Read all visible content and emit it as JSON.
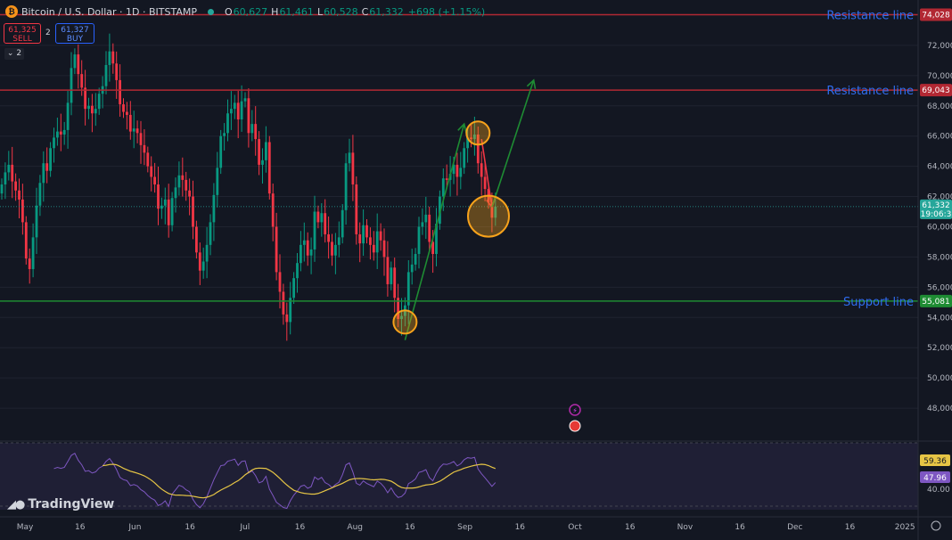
{
  "header": {
    "title": "Bitcoin / U.S. Dollar · 1D · BITSTAMP",
    "o_label": "O",
    "o_value": "60,627",
    "h_label": "H",
    "h_value": "61,461",
    "l_label": "L",
    "l_value": "60,528",
    "c_label": "C",
    "c_value": "61,332",
    "change": "+698 (+1.15%)"
  },
  "trade": {
    "sell_price": "61,325",
    "sell_label": "SELL",
    "spread": "2",
    "buy_price": "61,327",
    "buy_label": "BUY"
  },
  "indicator_toggle": "2",
  "branding": "TradingView",
  "colors": {
    "up": "#089981",
    "down": "#f23645",
    "resistance": "#b22833",
    "support": "#1e8c33",
    "accent": "#2962ff",
    "rsi": "#7e57c2",
    "rsi_ma": "#e6c545",
    "marker": "#f7a21b"
  },
  "chart_data": {
    "type": "candlestick",
    "symbol": "BTCUSD",
    "interval": "1D",
    "exchange": "BITSTAMP",
    "ylim": [
      46000,
      75000
    ],
    "y_ticks": [
      "48,000",
      "50,000",
      "52,000",
      "54,000",
      "56,000",
      "58,000",
      "60,000",
      "62,000",
      "64,000",
      "66,000",
      "68,000",
      "70,000",
      "72,000"
    ],
    "x_ticks": [
      "May",
      "16",
      "Jun",
      "16",
      "Jul",
      "16",
      "Aug",
      "16",
      "Sep",
      "16",
      "Oct",
      "16",
      "Nov",
      "16",
      "Dec",
      "16",
      "2025"
    ],
    "horizontal_lines": [
      {
        "label": "Resistance line",
        "price": 74028,
        "price_label": "74,028",
        "color": "#b22833"
      },
      {
        "label": "Resistance line",
        "price": 69043,
        "price_label": "69,043",
        "color": "#b22833"
      },
      {
        "label": "Support line",
        "price": 55081,
        "price_label": "55,081",
        "color": "#1e8c33"
      }
    ],
    "last_price": {
      "price": 61332,
      "label": "61,332",
      "countdown": "19:06:3"
    },
    "closes": [
      62800,
      63600,
      64100,
      63000,
      62400,
      61800,
      60300,
      57900,
      57200,
      59300,
      61400,
      62900,
      64200,
      63700,
      65200,
      65900,
      66300,
      66100,
      66400,
      68200,
      70500,
      71400,
      70100,
      69200,
      67800,
      68000,
      67500,
      67800,
      68800,
      69300,
      70700,
      71600,
      70800,
      69700,
      68100,
      67600,
      67400,
      66300,
      66500,
      66200,
      65400,
      64900,
      64000,
      63300,
      62800,
      61200,
      61400,
      61800,
      60100,
      61900,
      62600,
      63400,
      63100,
      62400,
      62000,
      60000,
      58300,
      57100,
      57700,
      58800,
      60300,
      62100,
      63900,
      66000,
      66200,
      67500,
      67800,
      68200,
      67100,
      68300,
      68500,
      66200,
      66800,
      65800,
      64100,
      64400,
      65600,
      62200,
      60000,
      57000,
      55700,
      54200,
      53700,
      55300,
      56600,
      57600,
      58800,
      59100,
      58100,
      58500,
      61000,
      60300,
      60900,
      59500,
      59000,
      58100,
      58800,
      59300,
      61100,
      64200,
      64900,
      62800,
      59500,
      58900,
      60100,
      59300,
      58800,
      58300,
      59700,
      59100,
      58000,
      56200,
      57300,
      55300,
      53900,
      54100,
      54800,
      57000,
      57500,
      58200,
      60000,
      60300,
      60800,
      59000,
      58200,
      60200,
      62000,
      63200,
      63100,
      63500,
      64100,
      63300,
      63900,
      65200,
      65900,
      65800,
      66100,
      64200,
      63300,
      62500,
      61600,
      60600,
      61332
    ]
  },
  "rsi": {
    "ylim": [
      0,
      100
    ],
    "ma_value": "59.36",
    "rsi_value": "47.96",
    "level_label": "40.00",
    "ma_period": 14,
    "rsi_period": 14
  },
  "annotations": {
    "circles": [
      {
        "date_index": 116,
        "price": 53700
      },
      {
        "date_index": 137,
        "price": 66200
      },
      {
        "date_index": 140,
        "price": 60700
      }
    ],
    "arrows": [
      {
        "color": "#1e8c33",
        "from": [
          116,
          52500
        ],
        "to": [
          133,
          66800
        ]
      },
      {
        "color": "#f23645",
        "from": [
          138,
          65800
        ],
        "to": [
          141,
          61300
        ]
      },
      {
        "color": "#1e8c33",
        "from": [
          141,
          61300
        ],
        "to": [
          153,
          69700
        ]
      }
    ]
  }
}
